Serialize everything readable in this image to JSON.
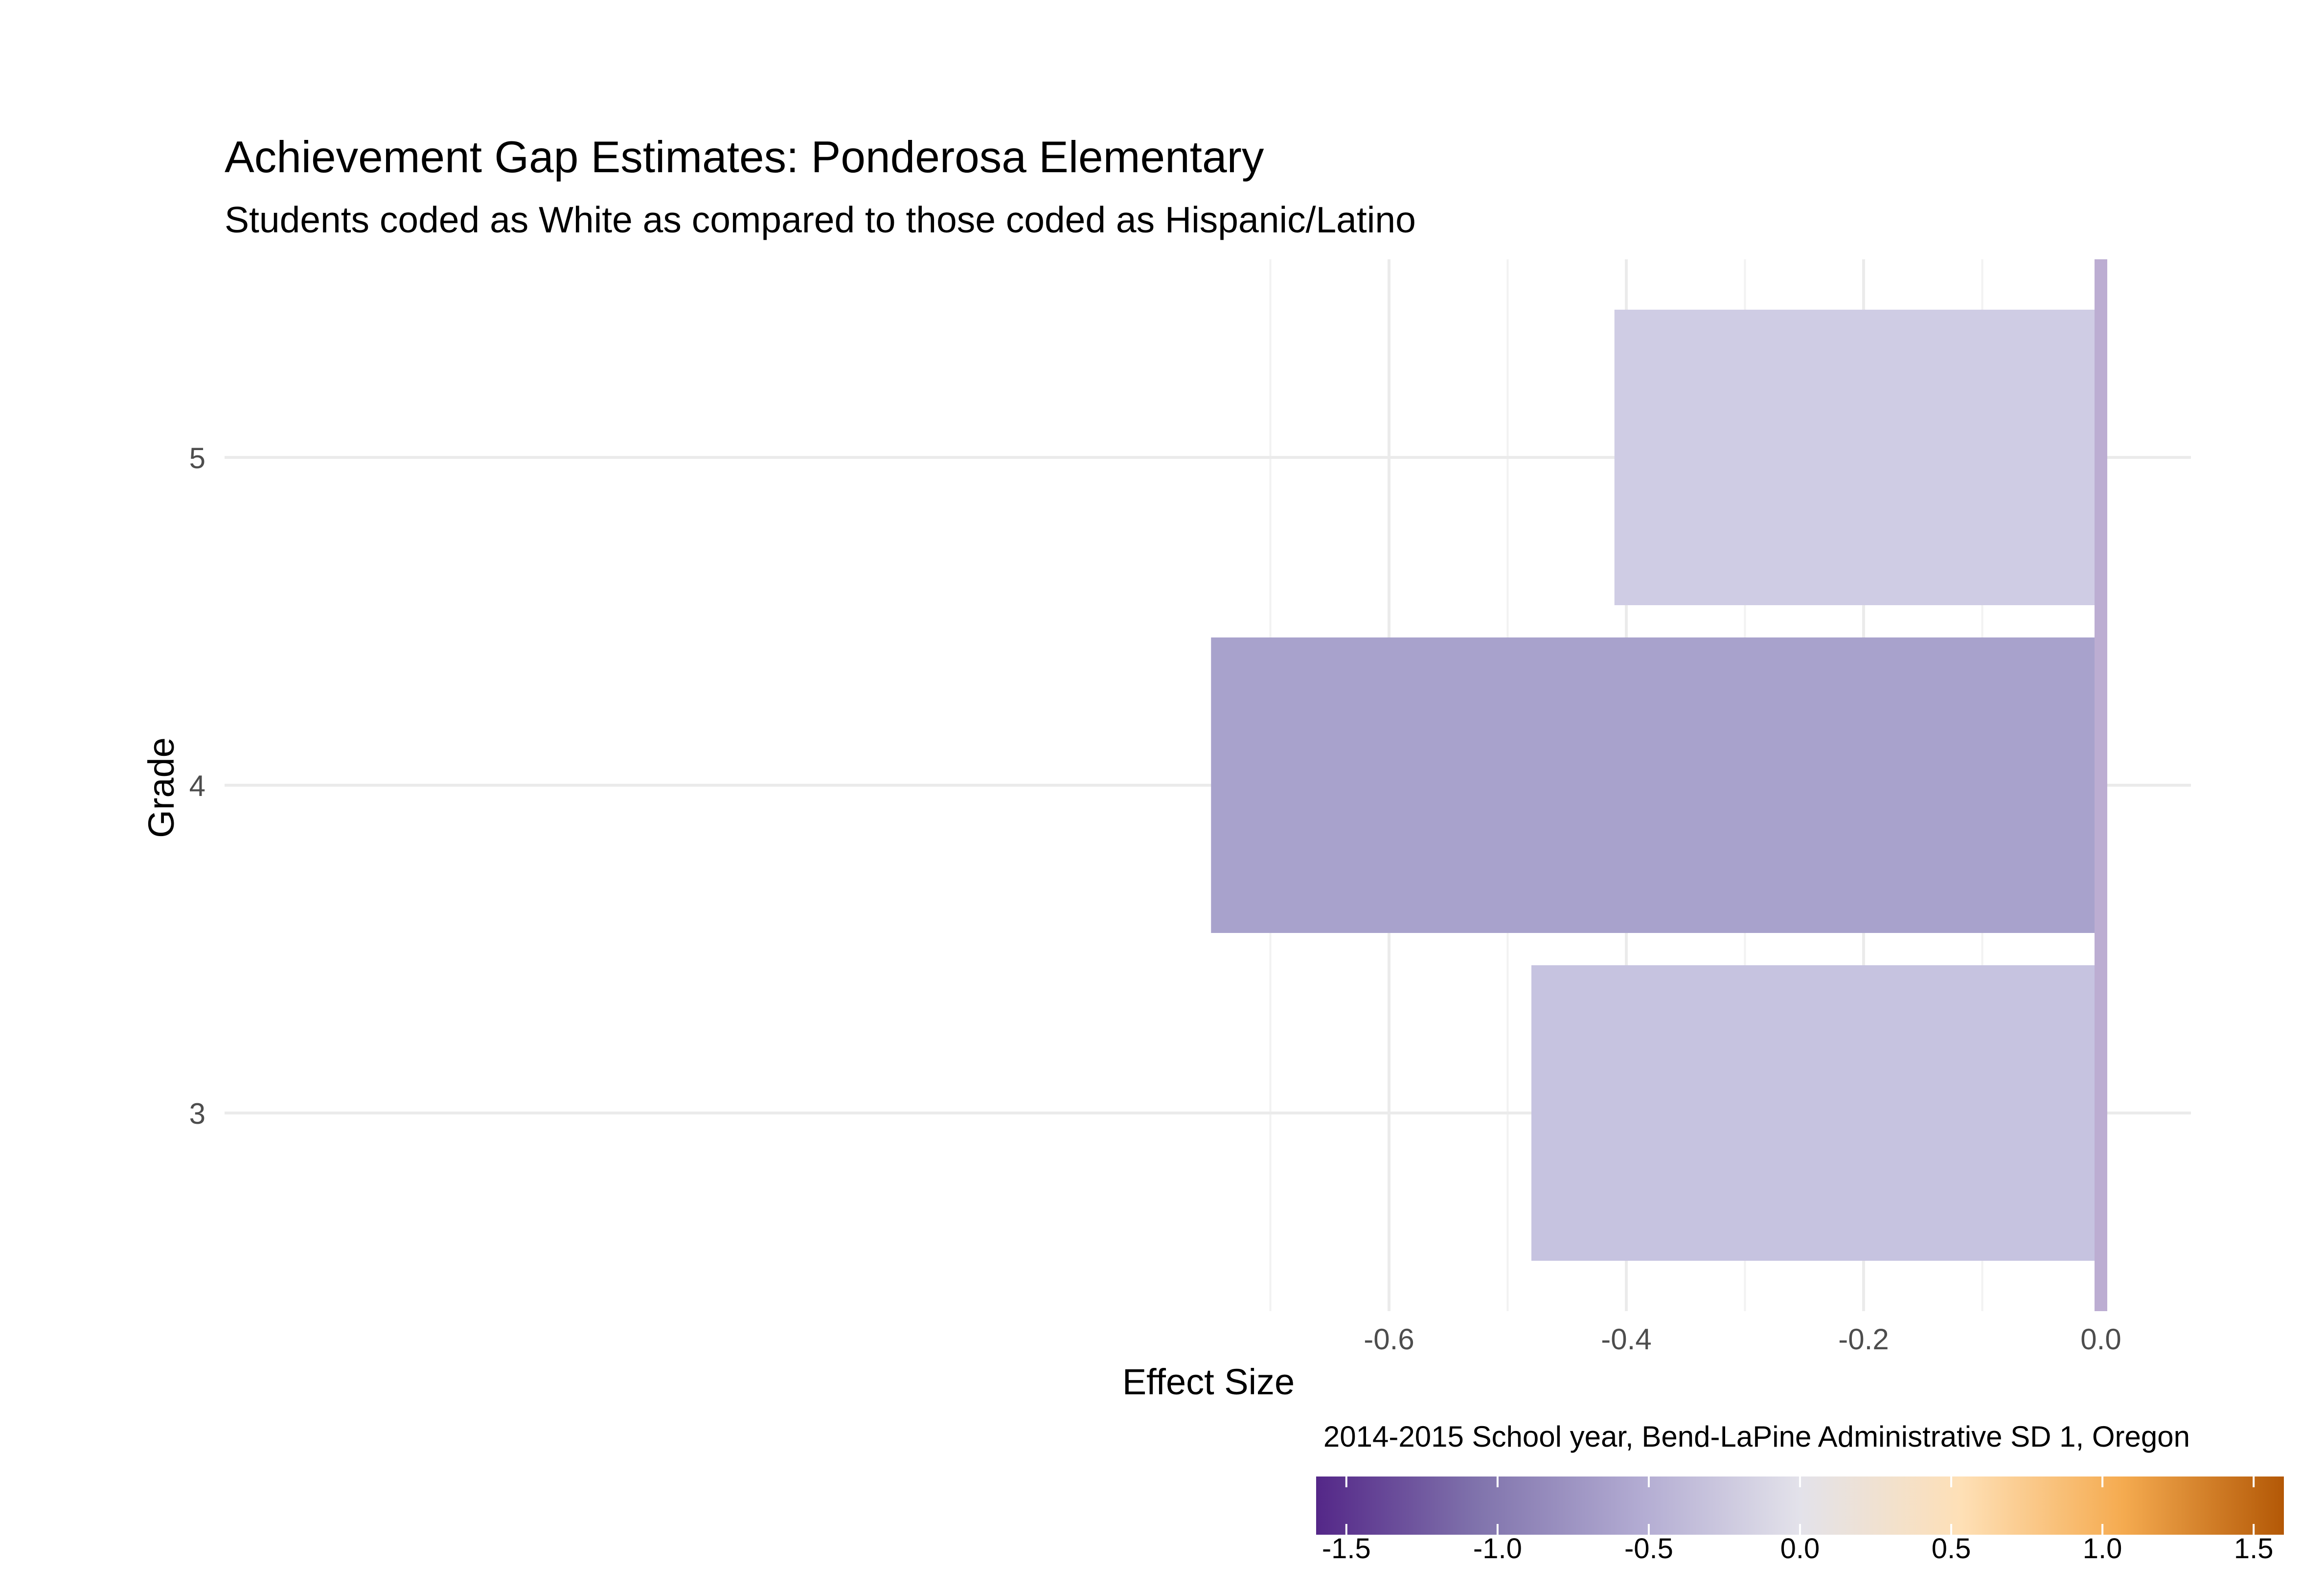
{
  "chart_data": {
    "type": "bar",
    "orientation": "horizontal",
    "title": "Achievement Gap Estimates: Ponderosa Elementary",
    "subtitle": "Students coded as White as compared to those coded as Hispanic/Latino",
    "xlabel": "Effect Size",
    "ylabel": "Grade",
    "caption": "2014-2015 School year, Bend-LaPine Administrative SD 1, Oregon",
    "categories": [
      "3",
      "4",
      "5"
    ],
    "values": [
      -0.48,
      -0.75,
      -0.41
    ],
    "bar_colors": [
      "#c6c3e0",
      "#a8a2cc",
      "#cfcce4"
    ],
    "xlim": [
      -0.81,
      0.04
    ],
    "x_ticks": [
      -0.6,
      -0.4,
      -0.2,
      0.0
    ],
    "x_tick_labels": [
      "-0.6",
      "-0.4",
      "-0.2",
      "0.0"
    ],
    "reference_line": {
      "x": 0.0,
      "color": "#bcadd2"
    },
    "grid": true,
    "legend": {
      "type": "colorbar",
      "position": "bottom-right",
      "range": [
        -1.6,
        1.6
      ],
      "ticks": [
        -1.5,
        -1.0,
        -0.5,
        0.0,
        0.5,
        1.0,
        1.5
      ],
      "tick_labels": [
        "-1.5",
        "-1.0",
        "-0.5",
        "0.0",
        "0.5",
        "1.0",
        "1.5"
      ],
      "colors": [
        "#542788",
        "#8073ac",
        "#b2abd2",
        "#e3e2ea",
        "#fee0b6",
        "#f5ab50",
        "#b35806"
      ]
    }
  }
}
